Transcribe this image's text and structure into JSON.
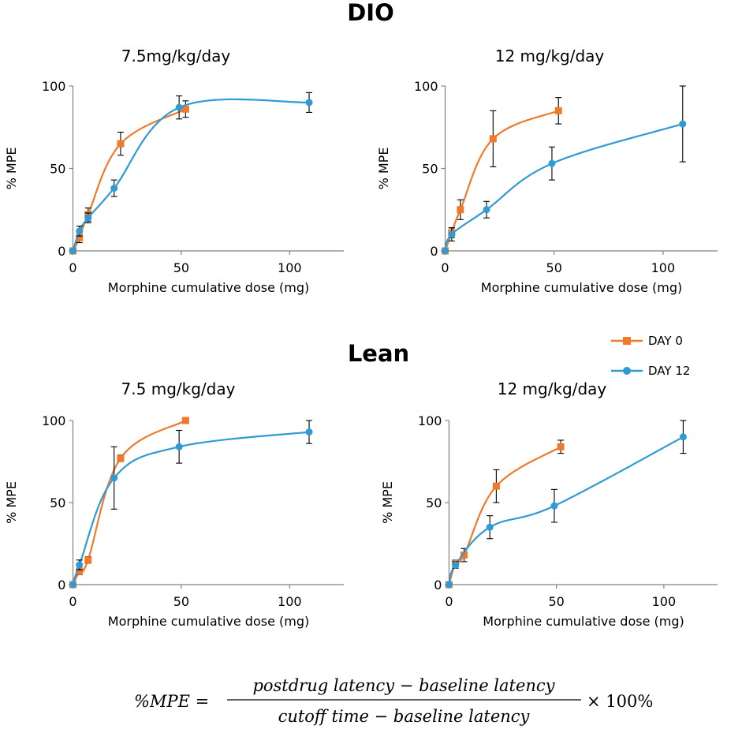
{
  "colors": {
    "day0": "#f07a2a",
    "day12": "#2f9ad6",
    "axis": "#808080",
    "error": "#000000"
  },
  "groups": {
    "dio": "DIO",
    "lean": "Lean"
  },
  "legend": {
    "day0": "DAY 0",
    "day12": "DAY 12"
  },
  "formula": {
    "lhs": "%MPE =",
    "numerator": "postdrug latency − baseline latency",
    "denominator": "cutoff time − baseline latency",
    "multiplier": "× 100%"
  },
  "chart_data": [
    {
      "type": "line",
      "title": "7.5mg/kg/day",
      "xlabel": "Morphine cumulative dose (mg)",
      "ylabel": "% MPE",
      "xlim": [
        -2,
        125
      ],
      "ylim": [
        0,
        100
      ],
      "xticks": [
        0,
        50,
        100
      ],
      "yticks": [
        0,
        50,
        100
      ],
      "series": [
        {
          "name": "DAY 0",
          "x": [
            0,
            3,
            7,
            22,
            52
          ],
          "y": [
            0,
            8,
            22,
            65,
            86
          ],
          "err": [
            0,
            3,
            4,
            7,
            5
          ]
        },
        {
          "name": "DAY 12",
          "x": [
            0,
            3,
            7,
            19,
            49,
            109
          ],
          "y": [
            0,
            12,
            20,
            38,
            87,
            90
          ],
          "err": [
            0,
            3,
            3,
            5,
            7,
            6
          ]
        }
      ]
    },
    {
      "type": "line",
      "title": "12 mg/kg/day",
      "xlabel": "Morphine cumulative dose (mg)",
      "ylabel": "% MPE",
      "xlim": [
        -2,
        125
      ],
      "ylim": [
        0,
        100
      ],
      "xticks": [
        0,
        50,
        100
      ],
      "yticks": [
        0,
        50,
        100
      ],
      "series": [
        {
          "name": "DAY 0",
          "x": [
            0,
            3,
            7,
            22,
            52
          ],
          "y": [
            0,
            11,
            25,
            68,
            85
          ],
          "err": [
            0,
            3,
            6,
            17,
            8
          ]
        },
        {
          "name": "DAY 12",
          "x": [
            0,
            3,
            19,
            49,
            109
          ],
          "y": [
            0,
            10,
            25,
            53,
            77
          ],
          "err": [
            0,
            4,
            5,
            10,
            23
          ]
        }
      ]
    },
    {
      "type": "line",
      "title": "7.5 mg/kg/day",
      "xlabel": "Morphine cumulative dose (mg)",
      "ylabel": "% MPE",
      "xlim": [
        -2,
        125
      ],
      "ylim": [
        0,
        100
      ],
      "xticks": [
        0,
        50,
        100
      ],
      "yticks": [
        0,
        50,
        100
      ],
      "series": [
        {
          "name": "DAY 0",
          "x": [
            0,
            3,
            7,
            22,
            52
          ],
          "y": [
            0,
            8,
            15,
            77,
            100
          ],
          "err": [
            0,
            2,
            2,
            2,
            0
          ]
        },
        {
          "name": "DAY 12",
          "x": [
            0,
            3,
            19,
            49,
            109
          ],
          "y": [
            0,
            12,
            65,
            84,
            93
          ],
          "err": [
            0,
            3,
            19,
            10,
            7
          ]
        }
      ]
    },
    {
      "type": "line",
      "title": "12 mg/kg/day",
      "xlabel": "Morphine cumulative dose (mg)",
      "ylabel": "% MPE",
      "xlim": [
        -2,
        125
      ],
      "ylim": [
        0,
        100
      ],
      "xticks": [
        0,
        50,
        100
      ],
      "yticks": [
        0,
        50,
        100
      ],
      "series": [
        {
          "name": "DAY 0",
          "x": [
            0,
            3,
            7,
            22,
            52
          ],
          "y": [
            0,
            13,
            18,
            60,
            84
          ],
          "err": [
            0,
            2,
            4,
            10,
            4
          ]
        },
        {
          "name": "DAY 12",
          "x": [
            0,
            3,
            19,
            49,
            109
          ],
          "y": [
            0,
            12,
            35,
            48,
            90
          ],
          "err": [
            0,
            2,
            7,
            10,
            10
          ]
        }
      ]
    }
  ]
}
